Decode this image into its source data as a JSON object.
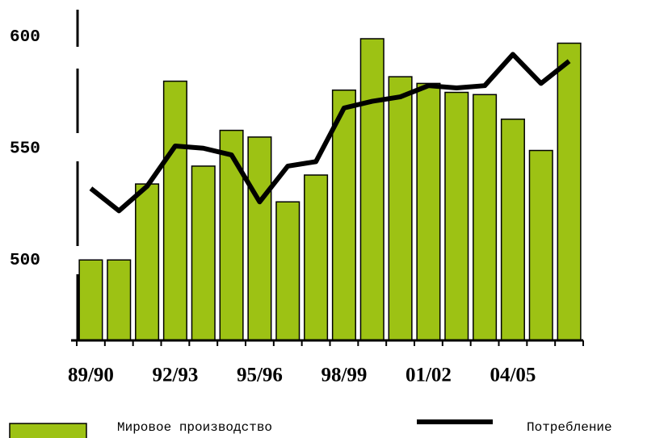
{
  "chart_data": {
    "type": "bar_line",
    "categories": [
      "89/90",
      null,
      null,
      "92/93",
      null,
      null,
      "95/96",
      null,
      null,
      "98/99",
      null,
      null,
      "01/02",
      null,
      null,
      "04/05",
      null,
      null
    ],
    "series": [
      {
        "name": "Мировое производство",
        "type": "bar",
        "color": "#9dc214",
        "values": [
          500,
          500,
          534,
          580,
          542,
          558,
          555,
          526,
          538,
          576,
          599,
          582,
          579,
          575,
          574,
          563,
          549,
          597
        ]
      },
      {
        "name": "Потребление",
        "type": "line",
        "color": "#000000",
        "values": [
          532,
          522,
          533,
          551,
          550,
          547,
          526,
          542,
          544,
          568,
          571,
          573,
          578,
          577,
          578,
          592,
          579,
          589
        ]
      }
    ],
    "ylim": [
      464,
      612
    ],
    "yticks": [
      500,
      550,
      600
    ],
    "grid": false
  }
}
